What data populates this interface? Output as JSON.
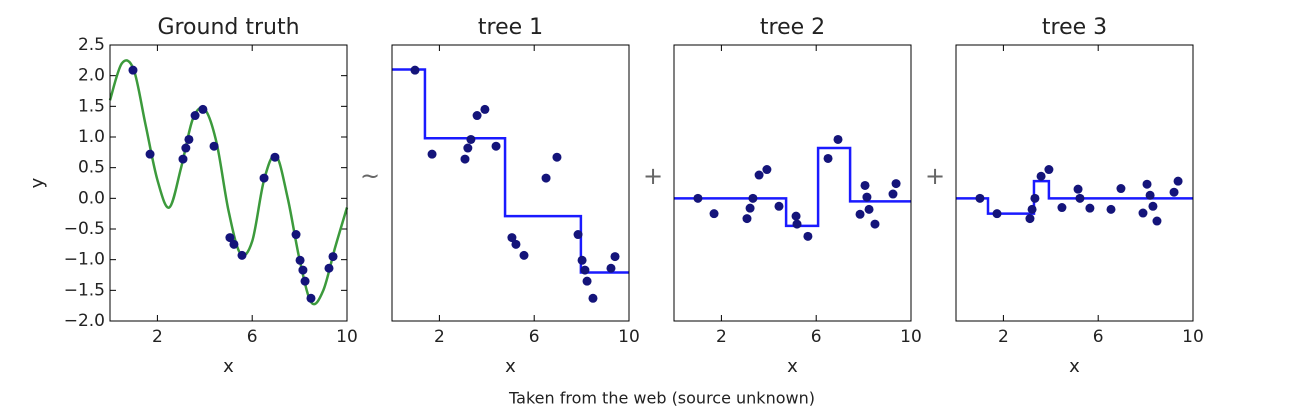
{
  "chart_data": [
    {
      "type": "line",
      "title": "Ground truth",
      "xlabel": "x",
      "ylabel": "y",
      "xlim": [
        0,
        10
      ],
      "ylim": [
        -2,
        2.5
      ],
      "xticks": [
        2,
        6,
        10
      ],
      "yticks": [
        {
          "value": -2,
          "label": "−2.0"
        },
        {
          "value": -1.5,
          "label": "−1.5"
        },
        {
          "value": -1,
          "label": "−1.0"
        },
        {
          "value": -0.5,
          "label": "−0.5"
        },
        {
          "value": 0,
          "label": "0.0"
        },
        0.5,
        {
          "value": 1,
          "label": "1.0"
        },
        1.5,
        {
          "value": 2,
          "label": "2.0"
        },
        2.5
      ],
      "series": [
        {
          "style": "smooth",
          "color": "#3c9a3c",
          "x": [
            0,
            0.5,
            1,
            1.5,
            2,
            2.5,
            3,
            3.5,
            4,
            4.5,
            5,
            5.5,
            6,
            6.5,
            7,
            7.5,
            8,
            8.5,
            9,
            9.5,
            10
          ],
          "values": [
            1.6,
            2.2,
            2.1,
            1.2,
            0.3,
            -0.15,
            0.5,
            1.3,
            1.45,
            0.9,
            -0.2,
            -0.9,
            -0.7,
            0.3,
            0.7,
            0.0,
            -1.0,
            -1.7,
            -1.5,
            -0.8,
            -0.15
          ]
        },
        {
          "style": "markers",
          "color": "#14147a",
          "x": [
            0.97,
            1.69,
            3.08,
            3.2,
            3.33,
            3.59,
            3.92,
            4.39,
            5.06,
            5.23,
            5.57,
            6.5,
            6.96,
            7.85,
            8.02,
            8.14,
            8.23,
            8.48,
            9.24,
            9.41
          ],
          "values": [
            2.09,
            0.72,
            0.64,
            0.82,
            0.96,
            1.35,
            1.45,
            0.85,
            -0.64,
            -0.75,
            -0.93,
            0.33,
            0.67,
            -0.59,
            -1.01,
            -1.17,
            -1.35,
            -1.63,
            -1.14,
            -0.95
          ]
        }
      ]
    },
    {
      "type": "line",
      "title": "tree 1",
      "xlabel": "x",
      "xlim": [
        0,
        10
      ],
      "ylim": [
        -2,
        2.5
      ],
      "xticks": [
        2,
        6,
        10
      ],
      "series": [
        {
          "style": "markers",
          "color": "#14147a",
          "x": [
            0.97,
            1.69,
            3.08,
            3.2,
            3.33,
            3.59,
            3.92,
            4.39,
            5.06,
            5.23,
            5.57,
            6.5,
            6.96,
            7.85,
            8.02,
            8.14,
            8.23,
            8.48,
            9.24,
            9.41
          ],
          "values": [
            2.09,
            0.72,
            0.64,
            0.82,
            0.96,
            1.35,
            1.45,
            0.85,
            -0.64,
            -0.75,
            -0.93,
            0.33,
            0.67,
            -0.59,
            -1.01,
            -1.17,
            -1.35,
            -1.63,
            -1.14,
            -0.95
          ]
        },
        {
          "style": "steps",
          "color": "#1a1aff",
          "x": [
            0,
            1.39,
            4.77,
            7.97
          ],
          "values": [
            2.1,
            0.98,
            -0.29,
            -1.21
          ]
        }
      ]
    },
    {
      "type": "line",
      "title": "tree 2",
      "xlabel": "x",
      "xlim": [
        0,
        10
      ],
      "ylim": [
        -2,
        2.5
      ],
      "xticks": [
        2,
        6,
        10
      ],
      "series": [
        {
          "style": "markers",
          "color": "#14147a",
          "x": [
            1.01,
            1.69,
            3.08,
            3.21,
            3.33,
            3.59,
            3.92,
            4.43,
            5.15,
            5.19,
            5.65,
            6.5,
            6.92,
            7.85,
            8.06,
            8.14,
            8.23,
            8.48,
            9.24,
            9.37
          ],
          "values": [
            0,
            -0.25,
            -0.33,
            -0.16,
            0,
            0.38,
            0.47,
            -0.13,
            -0.29,
            -0.42,
            -0.62,
            0.65,
            0.96,
            -0.26,
            0.21,
            0.02,
            -0.18,
            -0.42,
            0.07,
            0.24
          ]
        },
        {
          "style": "steps",
          "color": "#1a1aff",
          "x": [
            0,
            4.73,
            6.08,
            7.43
          ],
          "values": [
            0,
            -0.45,
            0.82,
            -0.05
          ]
        }
      ]
    },
    {
      "type": "line",
      "title": "tree 3",
      "xlabel": "x",
      "xlim": [
        0,
        10
      ],
      "ylim": [
        -2,
        2.5
      ],
      "xticks": [
        2,
        6,
        10
      ],
      "series": [
        {
          "style": "markers",
          "color": "#14147a",
          "x": [
            1.01,
            1.73,
            3.12,
            3.21,
            3.33,
            3.59,
            3.92,
            4.47,
            5.15,
            5.23,
            5.65,
            6.54,
            6.96,
            7.89,
            8.06,
            8.19,
            8.31,
            8.48,
            9.2,
            9.37
          ],
          "values": [
            0,
            -0.25,
            -0.33,
            -0.18,
            0,
            0.36,
            0.47,
            -0.15,
            0.15,
            0,
            -0.16,
            -0.18,
            0.16,
            -0.24,
            0.23,
            0.05,
            -0.13,
            -0.37,
            0.1,
            0.28
          ]
        },
        {
          "style": "steps",
          "color": "#1a1aff",
          "x": [
            0,
            1.35,
            3.29,
            3.92
          ],
          "values": [
            0,
            -0.25,
            0.28,
            0
          ]
        }
      ]
    }
  ],
  "operators": [
    "~",
    "+",
    "+"
  ],
  "caption": "Taken from the web (source unknown)"
}
